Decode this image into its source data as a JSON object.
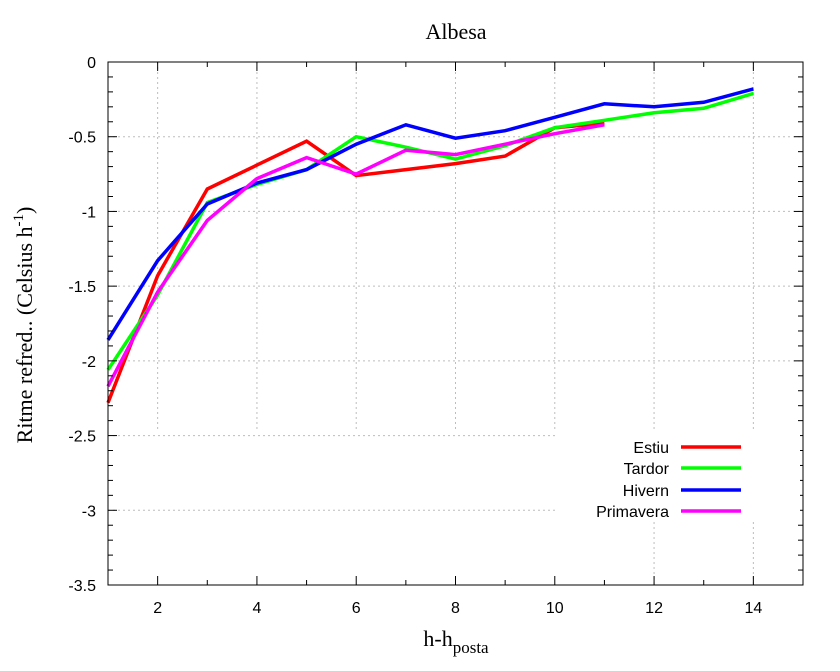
{
  "chart_data": {
    "type": "line",
    "title": "Albesa",
    "xlabel": {
      "main": "h-h",
      "sub": "posta"
    },
    "ylabel": {
      "main": "Ritme refred.. (Celsius h",
      "sup": "-1",
      "tail": ")"
    },
    "xlim": [
      1,
      15
    ],
    "ylim": [
      -3.5,
      0
    ],
    "xticks": [
      2,
      4,
      6,
      8,
      10,
      12,
      14
    ],
    "yticks": [
      0,
      -0.5,
      -1,
      -1.5,
      -2,
      -2.5,
      -3,
      -3.5
    ],
    "ytick_labels": [
      "0",
      "-0.5",
      "-1",
      "-1.5",
      "-2",
      "-2.5",
      "-3",
      "-3.5"
    ],
    "grid": true,
    "legend_position": "bottom-right",
    "series": [
      {
        "name": "Estiu",
        "color": "#ff0000",
        "x": [
          1,
          2,
          3,
          4,
          5,
          6,
          7,
          8,
          9,
          10,
          11
        ],
        "y": [
          -2.28,
          -1.43,
          -0.85,
          -0.69,
          -0.53,
          -0.76,
          -0.72,
          -0.68,
          -0.63,
          -0.44,
          -0.41
        ]
      },
      {
        "name": "Tardor",
        "color": "#00ff00",
        "x": [
          1,
          2,
          3,
          4,
          5,
          6,
          7,
          8,
          9,
          10,
          11,
          12,
          13,
          14
        ],
        "y": [
          -2.06,
          -1.56,
          -0.94,
          -0.82,
          -0.72,
          -0.5,
          -0.57,
          -0.65,
          -0.56,
          -0.44,
          -0.39,
          -0.34,
          -0.31,
          -0.21
        ]
      },
      {
        "name": "Hivern",
        "color": "#0000ff",
        "x": [
          1,
          2,
          3,
          4,
          5,
          6,
          7,
          8,
          9,
          10,
          11,
          12,
          13,
          14
        ],
        "y": [
          -1.86,
          -1.33,
          -0.95,
          -0.81,
          -0.72,
          -0.55,
          -0.42,
          -0.51,
          -0.46,
          -0.37,
          -0.28,
          -0.3,
          -0.27,
          -0.18
        ]
      },
      {
        "name": "Primavera",
        "color": "#ff00ff",
        "x": [
          1,
          2,
          3,
          4,
          5,
          6,
          7,
          8,
          9,
          10,
          11
        ],
        "y": [
          -2.17,
          -1.54,
          -1.06,
          -0.78,
          -0.64,
          -0.75,
          -0.59,
          -0.62,
          -0.55,
          -0.48,
          -0.42
        ]
      }
    ]
  }
}
